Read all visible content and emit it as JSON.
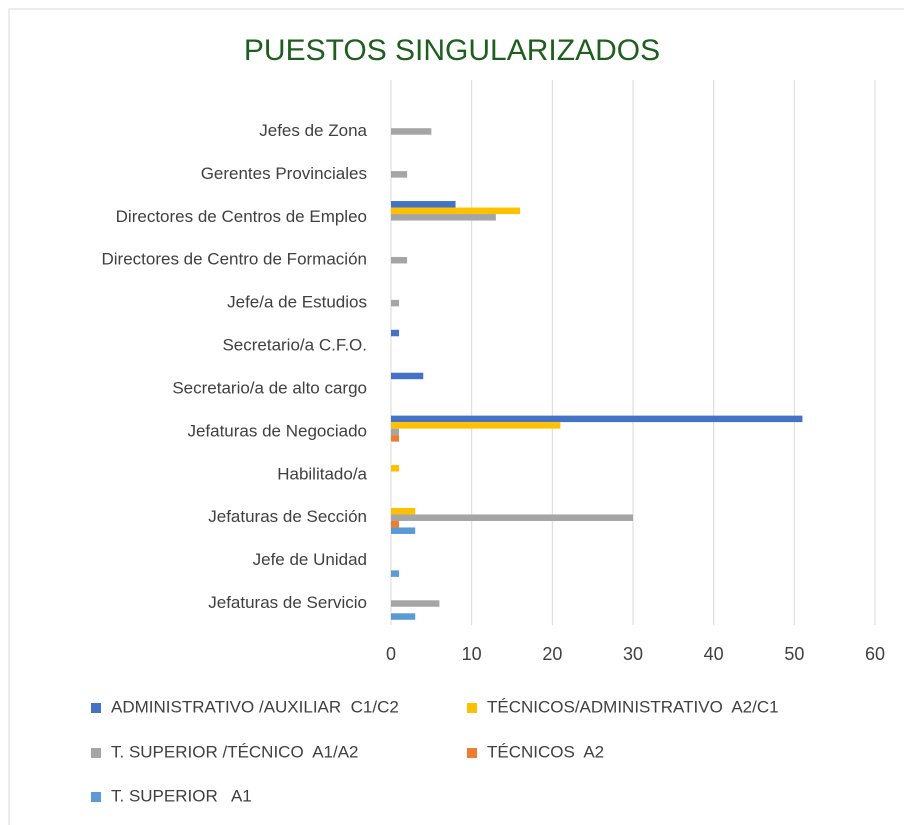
{
  "chart_data": {
    "type": "barh",
    "title": "PUESTOS SINGULARIZADOS",
    "categories": [
      "Jefes de Zona",
      "Gerentes Provinciales",
      "Directores de Centros de Empleo",
      "Directores de Centro de Formación",
      "Jefe/a de Estudios",
      "Secretario/a C.F.O.",
      "Secretario/a de alto cargo",
      "Jefaturas de Negociado",
      "Habilitado/a",
      "Jefaturas de Sección",
      "Jefe de Unidad",
      "Jefaturas de Servicio"
    ],
    "series": [
      {
        "name": "ADMINISTRATIVO /AUXILIAR  C1/C2",
        "color": "#4472c4",
        "values": [
          null,
          null,
          8,
          null,
          null,
          1,
          4,
          51,
          null,
          null,
          null,
          null
        ]
      },
      {
        "name": "TÉCNICOS/ADMINISTRATIVO  A2/C1",
        "color": "#ffc000",
        "values": [
          null,
          null,
          16,
          null,
          null,
          null,
          null,
          21,
          1,
          3,
          null,
          null
        ]
      },
      {
        "name": "T. SUPERIOR /TÉCNICO  A1/A2",
        "color": "#a5a5a5",
        "values": [
          5,
          2,
          13,
          2,
          1,
          null,
          null,
          1,
          null,
          30,
          null,
          6
        ]
      },
      {
        "name": "TÉCNICOS  A2",
        "color": "#ed7d31",
        "values": [
          null,
          null,
          null,
          null,
          null,
          null,
          null,
          1,
          null,
          1,
          null,
          null
        ]
      },
      {
        "name": "T. SUPERIOR   A1",
        "color": "#5b9bd5",
        "values": [
          null,
          null,
          null,
          null,
          null,
          null,
          null,
          null,
          null,
          3,
          1,
          3
        ]
      }
    ],
    "xlim": [
      0,
      60
    ],
    "xticks": [
      0,
      10,
      20,
      30,
      40,
      50,
      60
    ],
    "grid": true,
    "legend": "bottom"
  }
}
